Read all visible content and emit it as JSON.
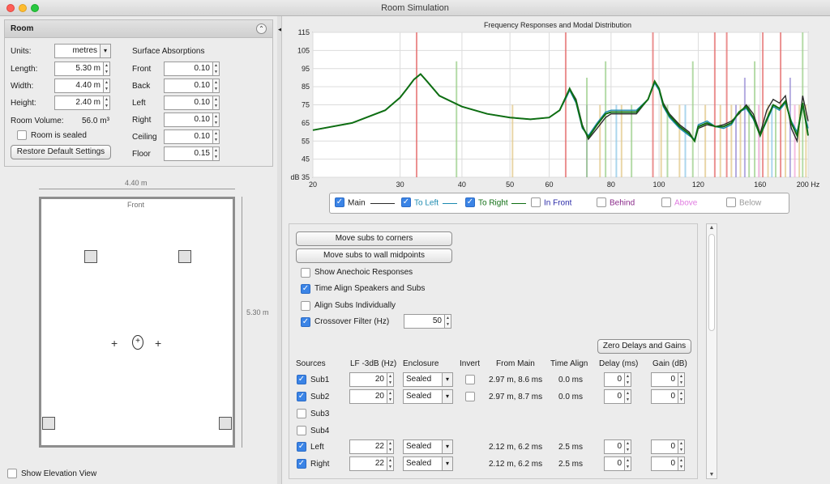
{
  "window": {
    "title": "Room Simulation"
  },
  "room": {
    "header": "Room",
    "units_label": "Units:",
    "units_value": "metres",
    "length_label": "Length:",
    "length_value": "5.30 m",
    "width_label": "Width:",
    "width_value": "4.40 m",
    "height_label": "Height:",
    "height_value": "2.40 m",
    "volume_label": "Room Volume:",
    "volume_value": "56.0 m³",
    "sealed_label": "Room is sealed",
    "restore_label": "Restore Default Settings",
    "surface_title": "Surface Absorptions",
    "surfaces": [
      {
        "name": "Front",
        "value": "0.10"
      },
      {
        "name": "Back",
        "value": "0.10"
      },
      {
        "name": "Left",
        "value": "0.10"
      },
      {
        "name": "Right",
        "value": "0.10"
      },
      {
        "name": "Ceiling",
        "value": "0.10"
      },
      {
        "name": "Floor",
        "value": "0.15"
      }
    ]
  },
  "plan": {
    "width_label": "4.40 m",
    "length_label": "5.30 m",
    "front_label": "Front",
    "elevation_label": "Show Elevation View"
  },
  "chart_data": {
    "type": "line",
    "title": "Frequency Responses and Modal Distribution",
    "x_scale": "log",
    "xlim": [
      20,
      200
    ],
    "ylim": [
      35,
      115
    ],
    "x_ticks": [
      "20",
      "30",
      "40",
      "50",
      "60",
      "80",
      "100",
      "120",
      "160",
      "200 Hz"
    ],
    "y_ticks": [
      "115",
      "105",
      "95",
      "85",
      "75",
      "65",
      "55",
      "45",
      "dB 35"
    ],
    "x_tick_values": [
      20,
      30,
      40,
      50,
      60,
      80,
      100,
      120,
      160,
      200
    ],
    "y_tick_values": [
      115,
      105,
      95,
      85,
      75,
      65,
      55,
      45,
      35
    ],
    "grid": true,
    "series": [
      {
        "name": "Main",
        "color": "#2b2b2b",
        "x": [
          20,
          24,
          28,
          30,
          31,
          32,
          33,
          34,
          36,
          40,
          45,
          50,
          55,
          60,
          63,
          65,
          66,
          68,
          70,
          72,
          75,
          78,
          80,
          85,
          90,
          95,
          98,
          100,
          102,
          105,
          110,
          115,
          118,
          120,
          125,
          130,
          135,
          140,
          145,
          150,
          155,
          160,
          165,
          170,
          175,
          180,
          185,
          190,
          195,
          200
        ],
        "y": [
          61,
          65,
          72,
          79,
          84,
          89,
          92,
          88,
          80,
          74,
          70,
          68,
          67,
          68,
          72,
          80,
          84,
          78,
          64,
          56,
          62,
          68,
          70,
          70,
          70,
          78,
          88,
          84,
          76,
          70,
          64,
          60,
          55,
          62,
          64,
          63,
          64,
          66,
          70,
          75,
          70,
          59,
          72,
          78,
          76,
          80,
          62,
          55,
          80,
          66
        ]
      },
      {
        "name": "To Left",
        "color": "#1b8ab0",
        "x": [
          20,
          24,
          28,
          30,
          31,
          32,
          33,
          34,
          36,
          40,
          45,
          50,
          55,
          60,
          63,
          65,
          66,
          68,
          70,
          72,
          75,
          78,
          80,
          85,
          90,
          95,
          98,
          100,
          102,
          105,
          110,
          115,
          118,
          120,
          125,
          130,
          135,
          140,
          145,
          150,
          155,
          160,
          165,
          170,
          175,
          180,
          185,
          190,
          195,
          200
        ],
        "y": [
          61,
          65,
          72,
          79,
          84,
          89,
          92,
          88,
          80,
          74,
          70,
          68,
          67,
          68,
          72,
          79,
          83,
          76,
          62,
          58,
          65,
          71,
          72,
          72,
          72,
          78,
          87,
          83,
          74,
          68,
          62,
          58,
          56,
          64,
          66,
          63,
          62,
          64,
          71,
          73,
          67,
          58,
          66,
          74,
          72,
          76,
          66,
          60,
          74,
          62
        ]
      },
      {
        "name": "To Right",
        "color": "#0e6e12",
        "x": [
          20,
          24,
          28,
          30,
          31,
          32,
          33,
          34,
          36,
          40,
          45,
          50,
          55,
          60,
          63,
          65,
          66,
          68,
          70,
          72,
          75,
          78,
          80,
          85,
          90,
          95,
          98,
          100,
          102,
          105,
          110,
          115,
          118,
          120,
          125,
          130,
          135,
          140,
          145,
          150,
          155,
          160,
          165,
          170,
          175,
          180,
          185,
          190,
          195,
          200
        ],
        "y": [
          61,
          65,
          72,
          79,
          84,
          89,
          92,
          88,
          80,
          74,
          70,
          68,
          67,
          68,
          72,
          80,
          84,
          77,
          63,
          57,
          64,
          70,
          71,
          71,
          71,
          78,
          88,
          84,
          75,
          69,
          63,
          59,
          55,
          63,
          65,
          63,
          63,
          65,
          71,
          74,
          68,
          58,
          67,
          75,
          73,
          77,
          65,
          58,
          76,
          58
        ]
      }
    ],
    "modes": [
      {
        "x": 32.4,
        "h": 80,
        "color": "#e56b6b"
      },
      {
        "x": 39.0,
        "h": 64,
        "color": "#9ccf8a"
      },
      {
        "x": 50.6,
        "h": 40,
        "color": "#e2c98a"
      },
      {
        "x": 64.8,
        "h": 80,
        "color": "#e56b6b"
      },
      {
        "x": 71.5,
        "h": 40,
        "color": "#9b8fd6"
      },
      {
        "x": 71.5,
        "h": 55,
        "color": "#9ccf8a"
      },
      {
        "x": 76.0,
        "h": 40,
        "color": "#e2c98a"
      },
      {
        "x": 78.0,
        "h": 64,
        "color": "#9ccf8a"
      },
      {
        "x": 82.0,
        "h": 40,
        "color": "#8fc9e8"
      },
      {
        "x": 84.0,
        "h": 40,
        "color": "#e2c98a"
      },
      {
        "x": 88.0,
        "h": 40,
        "color": "#9ccf8a"
      },
      {
        "x": 97.2,
        "h": 80,
        "color": "#e56b6b"
      },
      {
        "x": 101.0,
        "h": 40,
        "color": "#e2c98a"
      },
      {
        "x": 104.0,
        "h": 40,
        "color": "#9ccf8a"
      },
      {
        "x": 110.0,
        "h": 40,
        "color": "#e2c98a"
      },
      {
        "x": 113.0,
        "h": 40,
        "color": "#8fc9e8"
      },
      {
        "x": 117.0,
        "h": 64,
        "color": "#9ccf8a"
      },
      {
        "x": 124.0,
        "h": 40,
        "color": "#e2c98a"
      },
      {
        "x": 129.6,
        "h": 80,
        "color": "#e56b6b"
      },
      {
        "x": 133.0,
        "h": 40,
        "color": "#e2c98a"
      },
      {
        "x": 137.0,
        "h": 80,
        "color": "#e56b6b"
      },
      {
        "x": 140.0,
        "h": 40,
        "color": "#e2c98a"
      },
      {
        "x": 143.0,
        "h": 40,
        "color": "#9b8fd6"
      },
      {
        "x": 146.0,
        "h": 40,
        "color": "#e2c98a"
      },
      {
        "x": 149.0,
        "h": 55,
        "color": "#9b8fd6"
      },
      {
        "x": 152.0,
        "h": 40,
        "color": "#9ccf8a"
      },
      {
        "x": 156.0,
        "h": 64,
        "color": "#9ccf8a"
      },
      {
        "x": 159.0,
        "h": 40,
        "color": "#f2a7d8"
      },
      {
        "x": 162.0,
        "h": 80,
        "color": "#e56b6b"
      },
      {
        "x": 166.0,
        "h": 40,
        "color": "#e2c98a"
      },
      {
        "x": 169.0,
        "h": 40,
        "color": "#8fc9e8"
      },
      {
        "x": 172.0,
        "h": 40,
        "color": "#9ccf8a"
      },
      {
        "x": 176.0,
        "h": 80,
        "color": "#e56b6b"
      },
      {
        "x": 180.0,
        "h": 40,
        "color": "#e2c98a"
      },
      {
        "x": 184.0,
        "h": 55,
        "color": "#9b8fd6"
      },
      {
        "x": 188.0,
        "h": 40,
        "color": "#f2a7d8"
      },
      {
        "x": 192.0,
        "h": 40,
        "color": "#e2c98a"
      },
      {
        "x": 195.0,
        "h": 80,
        "color": "#9ccf8a"
      },
      {
        "x": 198.0,
        "h": 40,
        "color": "#e2c98a"
      }
    ]
  },
  "legend": [
    {
      "label": "Main",
      "checked": true,
      "color": "#2b2b2b"
    },
    {
      "label": "To Left",
      "checked": true,
      "color": "#1b8ab0"
    },
    {
      "label": "To Right",
      "checked": true,
      "color": "#0e6e12"
    },
    {
      "label": "In Front",
      "checked": false,
      "color": "#2a2aa8"
    },
    {
      "label": "Behind",
      "checked": false,
      "color": "#8a2a8a"
    },
    {
      "label": "Above",
      "checked": false,
      "color": "#e07be0"
    },
    {
      "label": "Below",
      "checked": false,
      "color": "#9a9a9a"
    }
  ],
  "controls": {
    "move_corners": "Move subs to corners",
    "move_midpoints": "Move subs to wall midpoints",
    "show_anechoic": "Show Anechoic Responses",
    "time_align": "Time Align Speakers and Subs",
    "align_subs": "Align Subs Individually",
    "crossover_label": "Crossover Filter (Hz)",
    "crossover_value": "50",
    "zero_delays": "Zero Delays and Gains",
    "headers": {
      "sources": "Sources",
      "lf": "LF -3dB (Hz)",
      "enclosure": "Enclosure",
      "invert": "Invert",
      "from_main": "From Main",
      "time_align": "Time Align",
      "delay": "Delay (ms)",
      "gain": "Gain (dB)"
    },
    "rows": [
      {
        "name": "Sub1",
        "enabled": true,
        "lf": "20",
        "enclosure": "Sealed",
        "from_main": "2.97 m, 8.6 ms",
        "time_align": "0.0 ms",
        "delay": "0",
        "gain": "0"
      },
      {
        "name": "Sub2",
        "enabled": true,
        "lf": "20",
        "enclosure": "Sealed",
        "from_main": "2.97 m, 8.7 ms",
        "time_align": "0.0 ms",
        "delay": "0",
        "gain": "0"
      },
      {
        "name": "Sub3",
        "enabled": false
      },
      {
        "name": "Sub4",
        "enabled": false
      },
      {
        "name": "Left",
        "enabled": true,
        "lf": "22",
        "enclosure": "Sealed",
        "from_main": "2.12 m, 6.2 ms",
        "time_align": "2.5 ms",
        "delay": "0",
        "gain": "0"
      },
      {
        "name": "Right",
        "enabled": true,
        "lf": "22",
        "enclosure": "Sealed",
        "from_main": "2.12 m, 6.2 ms",
        "time_align": "2.5 ms",
        "delay": "0",
        "gain": "0"
      }
    ]
  }
}
